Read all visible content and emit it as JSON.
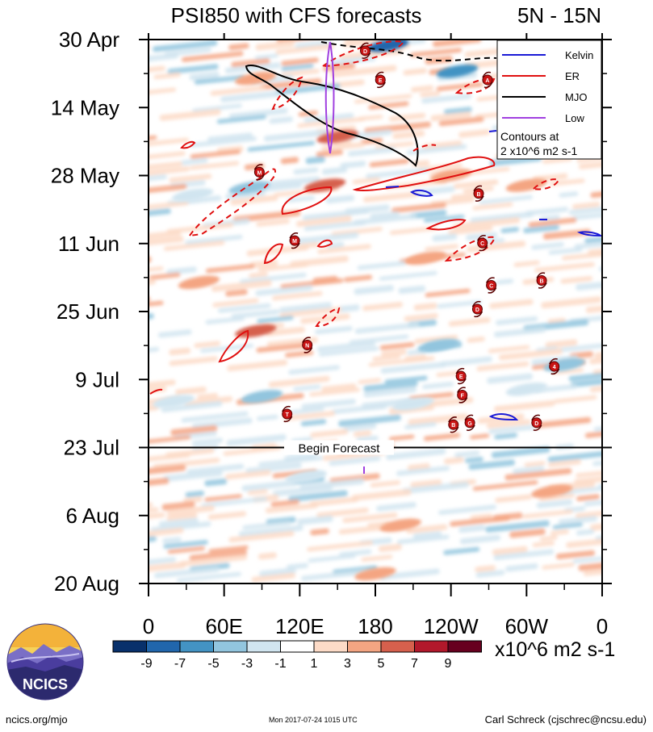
{
  "chart_data": {
    "type": "heatmap",
    "title": "PSI850 with CFS forecasts",
    "region": "5N - 15N",
    "x_ticks": [
      "0",
      "60E",
      "120E",
      "180",
      "120W",
      "60W",
      "0"
    ],
    "x_tick_degrees": [
      0,
      60,
      120,
      180,
      240,
      300,
      360
    ],
    "x_range_degrees": [
      0,
      360
    ],
    "y_ticks": [
      "30 Apr",
      "14 May",
      "28 May",
      "11 Jun",
      "25 Jun",
      "9 Jul",
      "23 Jul",
      "6 Aug",
      "20 Aug"
    ],
    "y_tick_days": [
      0,
      14,
      28,
      42,
      56,
      70,
      84,
      98,
      112
    ],
    "y_range_days": [
      0,
      112
    ],
    "forecast_start": {
      "label": "Begin Forecast",
      "day": 84
    },
    "colorbar": {
      "levels": [
        "-9",
        "-7",
        "-5",
        "-3",
        "-1",
        "1",
        "3",
        "5",
        "7",
        "9"
      ],
      "colors": [
        "#08306b",
        "#2166ac",
        "#4393c3",
        "#92c5de",
        "#d1e5f0",
        "#ffffff",
        "#fddbc7",
        "#f4a582",
        "#d6604d",
        "#b2182b",
        "#67001f"
      ],
      "units": "x10^6 m2 s-1"
    },
    "legend": {
      "items": [
        {
          "name": "Kelvin",
          "color": "#1a1ad6"
        },
        {
          "name": "ER",
          "color": "#e01010"
        },
        {
          "name": "MJO",
          "color": "#000000"
        },
        {
          "name": "Low",
          "color": "#a040e0"
        }
      ],
      "note_line1": "Contours at",
      "note_line2": "2 x10^6 m2 s-1",
      "position": "top-right"
    },
    "storms": [
      {
        "letter": "D",
        "lon": 172,
        "day": 2.3
      },
      {
        "letter": "E",
        "lon": 184,
        "day": 8.3
      },
      {
        "letter": "A",
        "lon": 269,
        "day": 8.3
      },
      {
        "letter": "M",
        "lon": 88,
        "day": 27.3
      },
      {
        "letter": "B",
        "lon": 262,
        "day": 31.7
      },
      {
        "letter": "M",
        "lon": 116,
        "day": 41.4
      },
      {
        "letter": "C",
        "lon": 265,
        "day": 41.9
      },
      {
        "letter": "C",
        "lon": 272,
        "day": 50.6
      },
      {
        "letter": "B",
        "lon": 312,
        "day": 49.6
      },
      {
        "letter": "D",
        "lon": 261,
        "day": 55.5
      },
      {
        "letter": "N",
        "lon": 126,
        "day": 62.9
      },
      {
        "letter": "4",
        "lon": 322,
        "day": 67.3
      },
      {
        "letter": "E",
        "lon": 248,
        "day": 69.3
      },
      {
        "letter": "F",
        "lon": 249,
        "day": 73.2
      },
      {
        "letter": "T",
        "lon": 110,
        "day": 77.1
      },
      {
        "letter": "G",
        "lon": 255,
        "day": 78.9
      },
      {
        "letter": "B",
        "lon": 242,
        "day": 79.3
      },
      {
        "letter": "D",
        "lon": 308,
        "day": 78.9
      }
    ],
    "anomaly_blobs": [
      {
        "lon": 190,
        "day": 1.2,
        "value": -8
      },
      {
        "lon": 245,
        "day": 6.5,
        "value": -7
      },
      {
        "lon": 80,
        "day": 30.5,
        "value": -4
      },
      {
        "lon": 230,
        "day": 63,
        "value": -5
      },
      {
        "lon": 90,
        "day": 73.5,
        "value": -4
      },
      {
        "lon": 210,
        "day": 75,
        "value": -3
      },
      {
        "lon": 330,
        "day": 67,
        "value": -4
      },
      {
        "lon": 125,
        "day": 90,
        "value": -3
      },
      {
        "lon": 300,
        "day": 72,
        "value": -3
      },
      {
        "lon": 35,
        "day": 32,
        "value": -3
      },
      {
        "lon": 20,
        "day": 74.5,
        "value": -3
      },
      {
        "lon": 150,
        "day": 20,
        "value": 5
      },
      {
        "lon": 85,
        "day": 8,
        "value": 4
      },
      {
        "lon": 140,
        "day": 30,
        "value": 6
      },
      {
        "lon": 240,
        "day": 28,
        "value": 4
      },
      {
        "lon": 85,
        "day": 60,
        "value": 5
      },
      {
        "lon": 40,
        "day": 50,
        "value": 3
      },
      {
        "lon": 200,
        "day": 100,
        "value": 3
      },
      {
        "lon": 320,
        "day": 93,
        "value": 3
      },
      {
        "lon": 300,
        "day": 30,
        "value": 3
      },
      {
        "lon": 220,
        "day": 45,
        "value": 3
      },
      {
        "lon": 180,
        "day": 110,
        "value": 3
      }
    ]
  },
  "footer": {
    "website": "ncics.org/mjo",
    "timestamp": "Mon 2017-07-24 1015 UTC",
    "author": "Carl Schreck (cjschrec@ncsu.edu)",
    "logo_text": "NCICS"
  }
}
